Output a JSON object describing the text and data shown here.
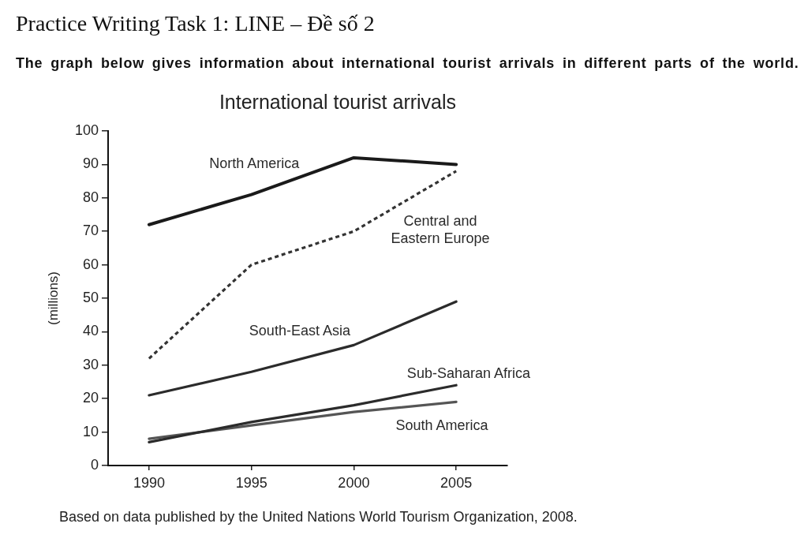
{
  "chart_data": {
    "type": "line",
    "title": "International tourist arrivals",
    "ylabel": "(millions)",
    "x": [
      1990,
      1995,
      2000,
      2005
    ],
    "xlim": [
      1988,
      2007.5
    ],
    "xticks": [
      1990,
      1995,
      2000,
      2005
    ],
    "ylim": [
      0,
      100
    ],
    "yticks": [
      0,
      10,
      20,
      30,
      40,
      50,
      60,
      70,
      80,
      90,
      100
    ],
    "series": [
      {
        "name": "North America",
        "color": "#1a1a1a",
        "values": [
          72,
          81,
          92,
          90
        ]
      },
      {
        "name": "Central and Eastern Europe",
        "color": "#333333",
        "line_style": "dashed",
        "values": [
          32,
          60,
          70,
          88
        ]
      },
      {
        "name": "South-East Asia",
        "color": "#2b2b2b",
        "values": [
          21,
          28,
          36,
          49
        ]
      },
      {
        "name": "Sub-Saharan Africa",
        "color": "#2b2b2b",
        "values": [
          7,
          13,
          18,
          24
        ]
      },
      {
        "name": "South America",
        "color": "#555555",
        "values": [
          8,
          12,
          16,
          19
        ]
      }
    ],
    "annotations": [
      "Practice Writing Task 1: LINE – Đề số 2",
      "The graph below gives information about international tourist arrivals in different parts of the world.",
      "Based on data published by the United Nations World Tourism Organization, 2008."
    ]
  }
}
